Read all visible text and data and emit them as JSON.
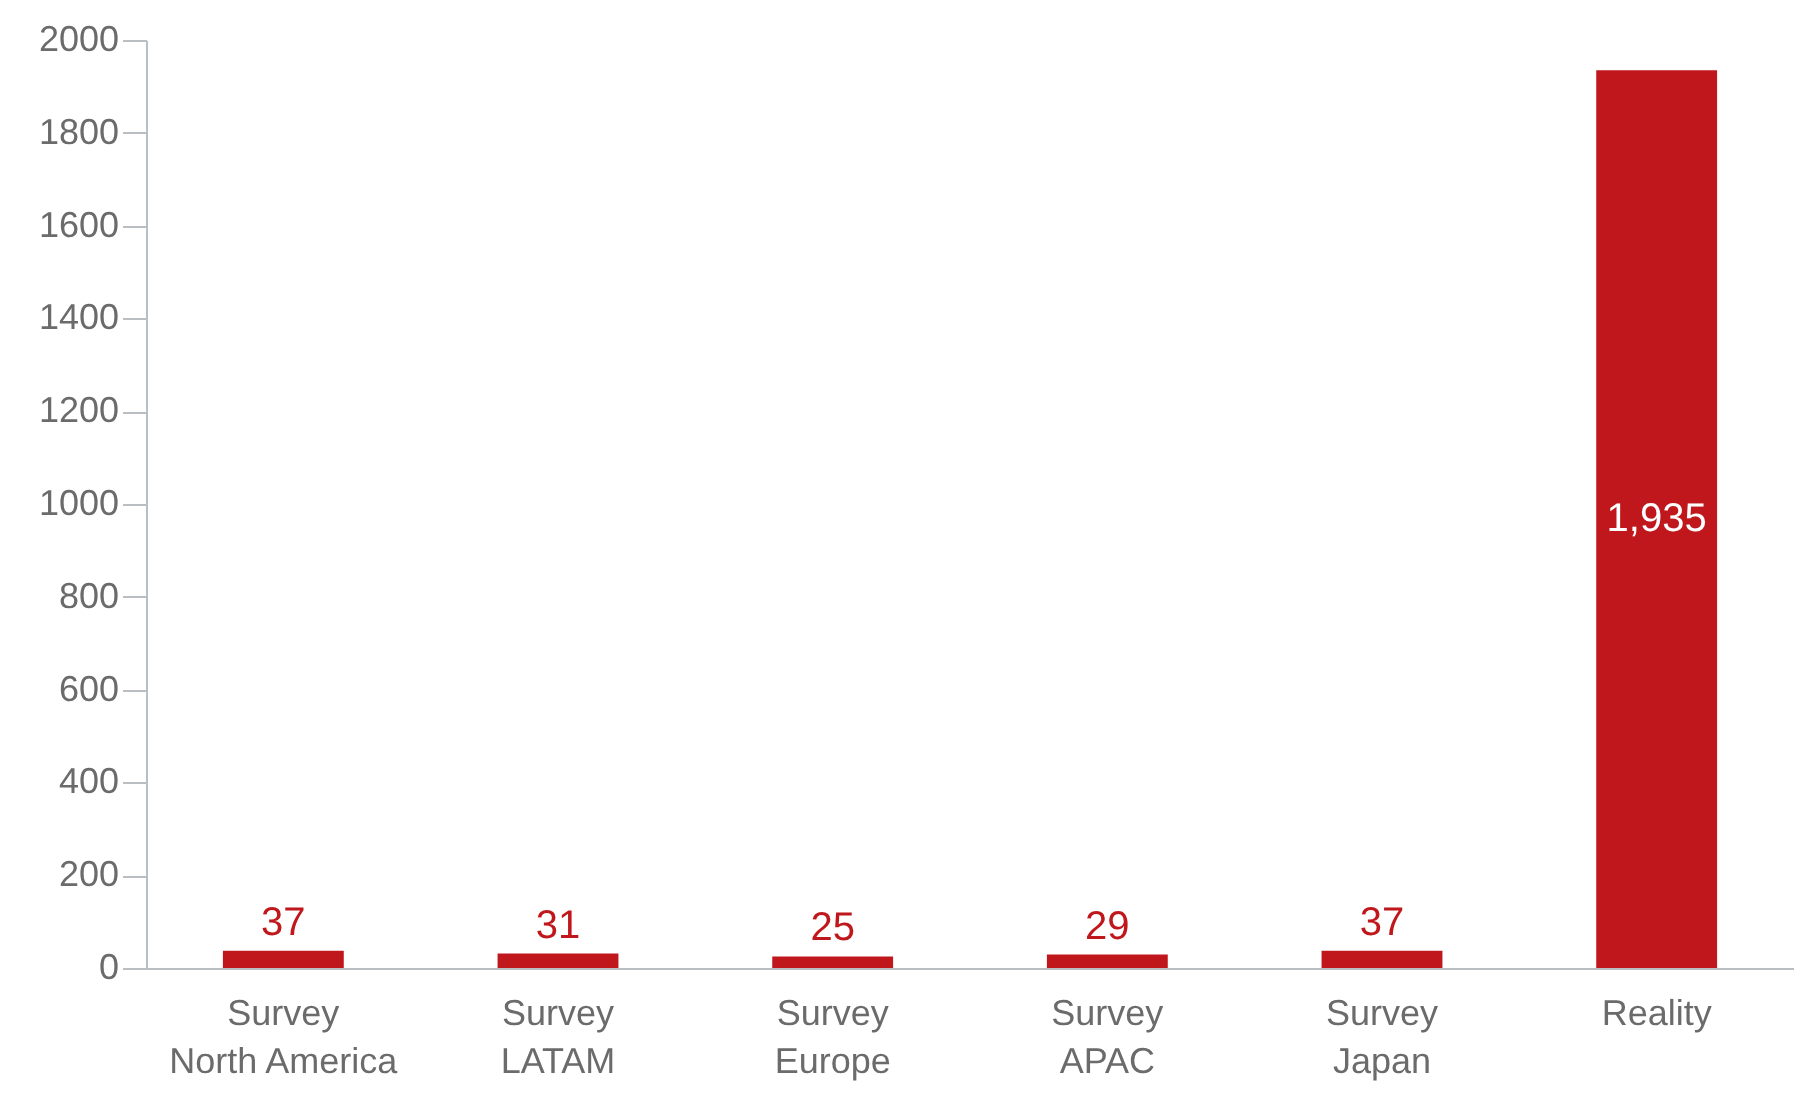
{
  "chart_data": {
    "type": "bar",
    "categories": [
      "Survey\nNorth America",
      "Survey\nLATAM",
      "Survey\nEurope",
      "Survey\nAPAC",
      "Survey\nJapan",
      "Reality"
    ],
    "values": [
      37,
      31,
      25,
      29,
      37,
      1935
    ],
    "value_labels": [
      "37",
      "31",
      "25",
      "29",
      "37",
      "1,935"
    ],
    "color": "#c0171c",
    "ylim": [
      0,
      2000
    ],
    "yticks": [
      0,
      200,
      400,
      600,
      800,
      1000,
      1200,
      1400,
      1600,
      1800,
      2000
    ],
    "grid": false
  }
}
